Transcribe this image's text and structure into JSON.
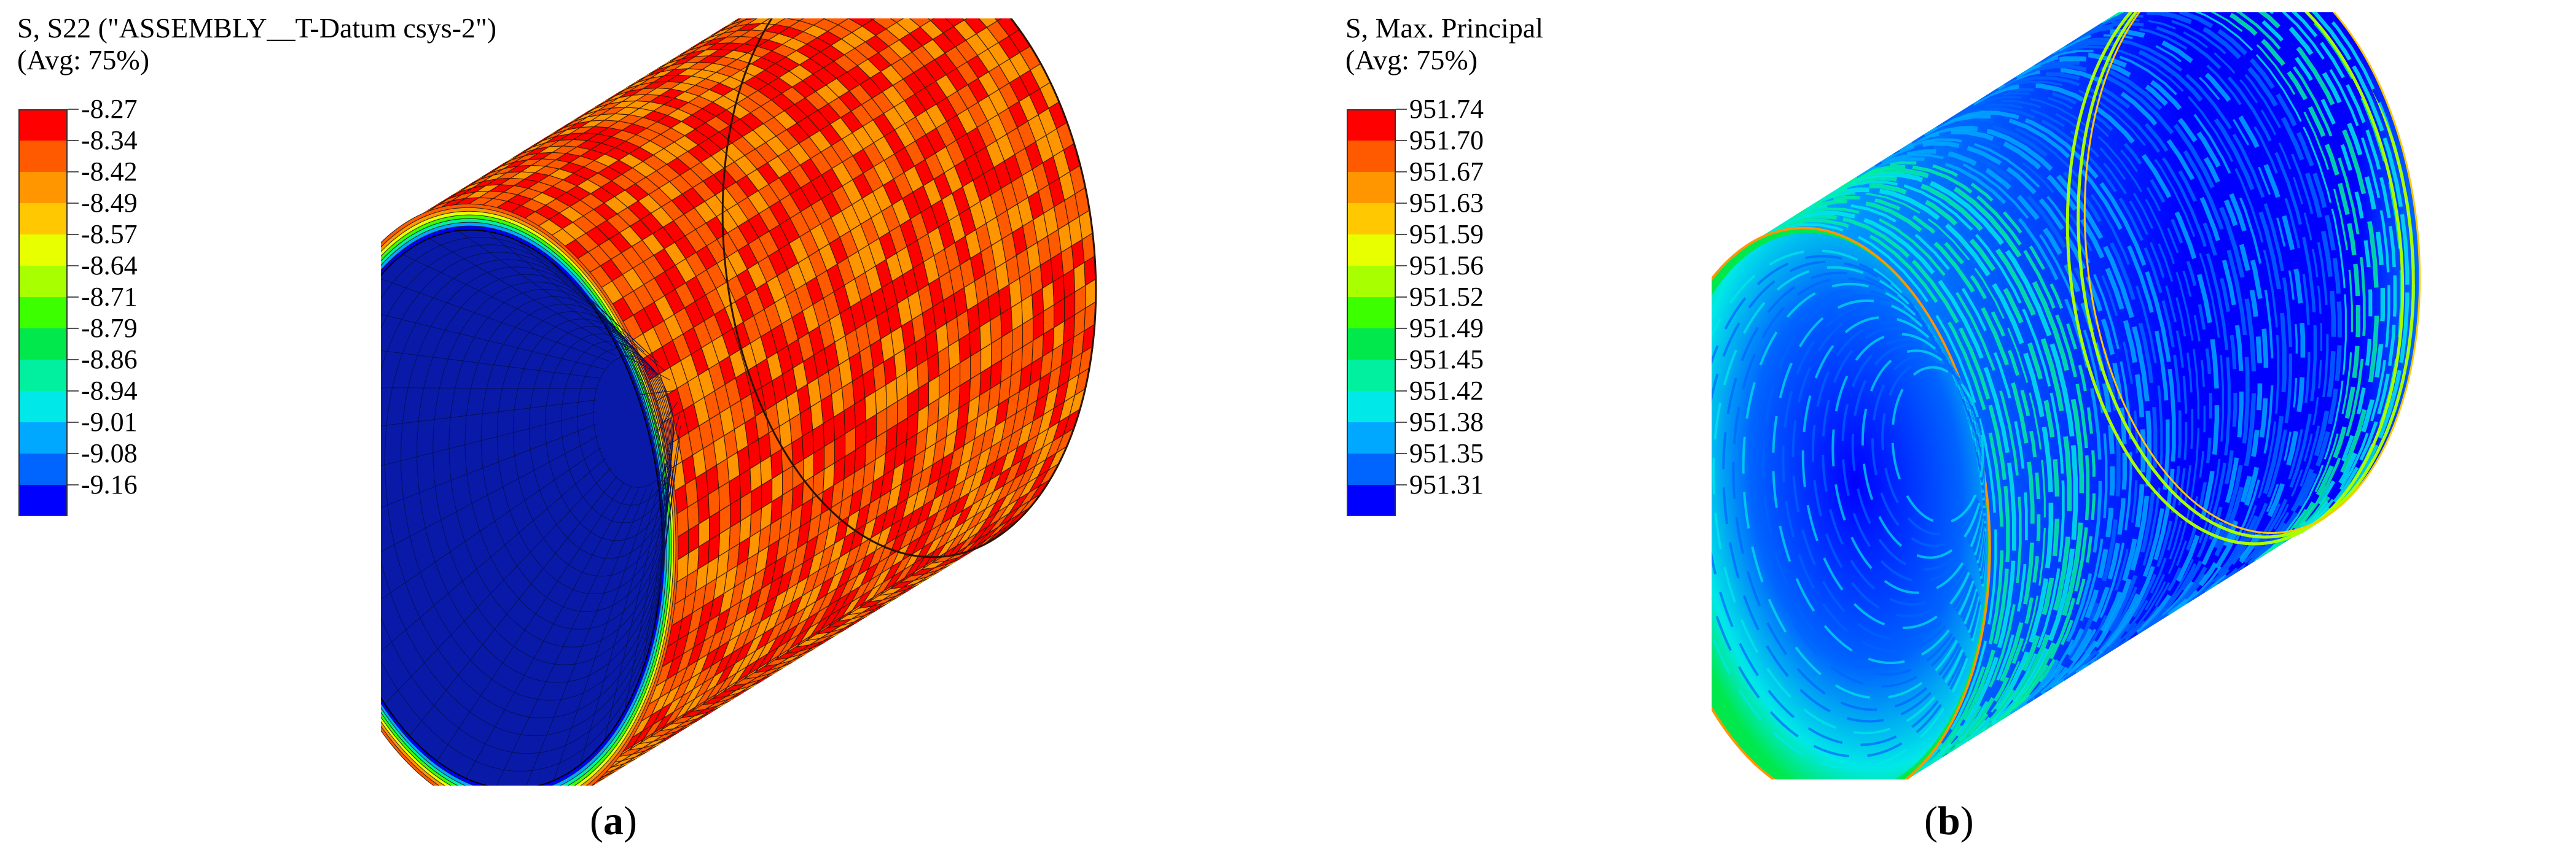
{
  "panels": [
    {
      "id": "a",
      "legend": {
        "title_line1": "S, S22 (\"ASSEMBLY__T-Datum csys-2\")",
        "title_line2": "(Avg: 75%)",
        "values": [
          "-8.27",
          "-8.34",
          "-8.42",
          "-8.49",
          "-8.57",
          "-8.64",
          "-8.71",
          "-8.79",
          "-8.86",
          "-8.94",
          "-9.01",
          "-9.08",
          "-9.16"
        ],
        "colors": [
          "#ff0000",
          "#ff5a00",
          "#ff9600",
          "#ffc800",
          "#e8ff00",
          "#a8ff00",
          "#3cff00",
          "#00e84c",
          "#00f0a0",
          "#00e8e8",
          "#00a8ff",
          "#0064ff",
          "#0000ff"
        ]
      },
      "caption_open": "(",
      "caption_letter": "a",
      "caption_close": ")"
    },
    {
      "id": "b",
      "legend": {
        "title_line1": "S, Max. Principal",
        "title_line2": "(Avg: 75%)",
        "values": [
          "951.74",
          "951.70",
          "951.67",
          "951.63",
          "951.59",
          "951.56",
          "951.52",
          "951.49",
          "951.45",
          "951.42",
          "951.38",
          "951.35",
          "951.31"
        ],
        "colors": [
          "#ff0000",
          "#ff5a00",
          "#ff9600",
          "#ffc800",
          "#e8ff00",
          "#a8ff00",
          "#3cff00",
          "#00e84c",
          "#00f0a0",
          "#00e8e8",
          "#00a8ff",
          "#0064ff",
          "#0000ff"
        ]
      },
      "caption_open": "(",
      "caption_letter": "b",
      "caption_close": ")"
    }
  ]
}
